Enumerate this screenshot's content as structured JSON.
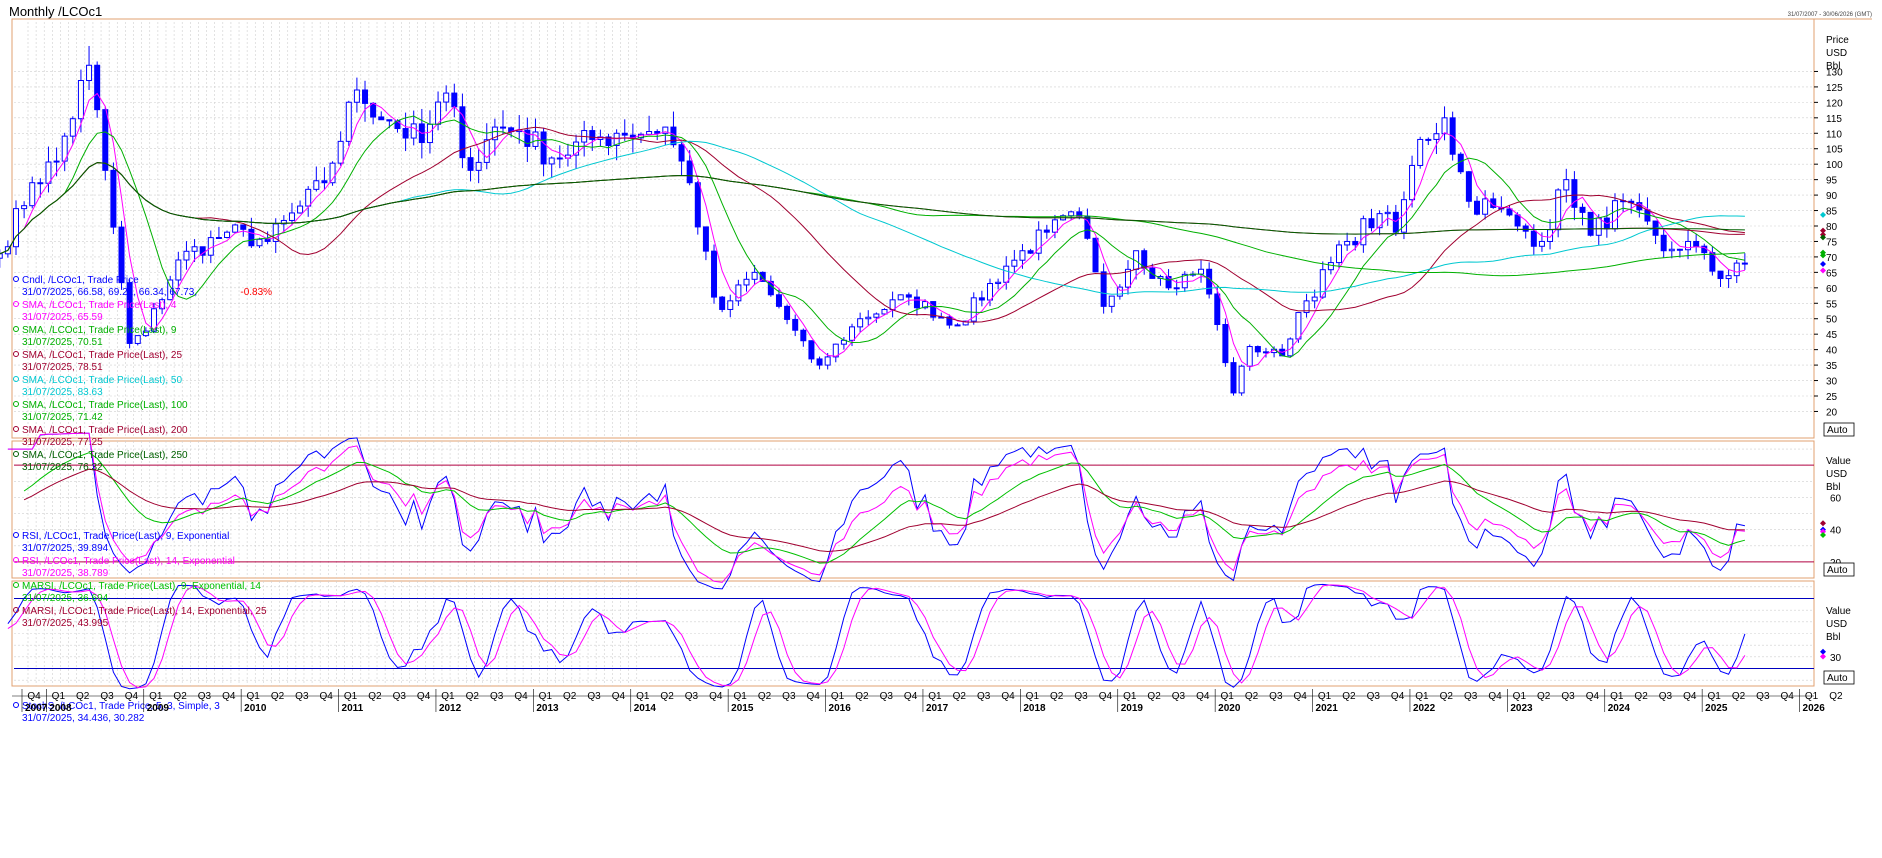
{
  "title": "Monthly /LCOc1",
  "date_range": "31/07/2007 - 30/06/2026 (GMT)",
  "colors": {
    "candle": "#0000ff",
    "sma4": "#ff00ff",
    "sma9": "#00b000",
    "sma25": "#a00030",
    "sma50": "#00c8d0",
    "sma100": "#00b000",
    "sma200": "#a00030",
    "sma250": "#006000",
    "rsi9": "#0000ff",
    "rsi14": "#ff00ff",
    "marsi9": "#00c000",
    "marsi14": "#a00030",
    "stochK": "#0000ff",
    "stochD": "#ff00ff",
    "level": "#b00040",
    "stochLevel": "#0000c0"
  },
  "price_panel": {
    "legend": [
      {
        "label": "Cndl, /LCOc1, Trade Price",
        "color": "#0000ff",
        "value_text": "31/07/2025, 66.58, 69.21, 66.34, 67.73,",
        "change_text": "-0.83%"
      },
      {
        "label": "SMA, /LCOc1, Trade Price(Last), 4",
        "color": "#ff00ff",
        "value_text": "31/07/2025, 65.59"
      },
      {
        "label": "SMA, /LCOc1, Trade Price(Last), 9",
        "color": "#00b000",
        "value_text": "31/07/2025, 70.51"
      },
      {
        "label": "SMA, /LCOc1, Trade Price(Last), 25",
        "color": "#a00030",
        "value_text": "31/07/2025, 78.51"
      },
      {
        "label": "SMA, /LCOc1, Trade Price(Last), 50",
        "color": "#00c8d0",
        "value_text": "31/07/2025, 83.63"
      },
      {
        "label": "SMA, /LCOc1, Trade Price(Last), 100",
        "color": "#00b000",
        "value_text": "31/07/2025, 71.42"
      },
      {
        "label": "SMA, /LCOc1, Trade Price(Last), 200",
        "color": "#a00030",
        "value_text": "31/07/2025, 77.25"
      },
      {
        "label": "SMA, /LCOc1, Trade Price(Last), 250",
        "color": "#006000",
        "value_text": "31/07/2025, 76.32"
      }
    ],
    "axis_header": [
      "Price",
      "USD",
      "Bbl"
    ],
    "ticks": [
      20,
      25,
      30,
      35,
      40,
      45,
      50,
      55,
      60,
      65,
      70,
      75,
      80,
      85,
      90,
      95,
      100,
      105,
      110,
      115,
      120,
      125,
      130
    ],
    "ylim": [
      14,
      146
    ],
    "auto_label": "Auto"
  },
  "rsi_panel": {
    "legend": [
      {
        "label": "RSI, /LCOc1, Trade Price(Last), 9, Exponential",
        "color": "#0000ff",
        "value_text": "31/07/2025, 39.894"
      },
      {
        "label": "RSI, /LCOc1, Trade Price(Last), 14, Exponential",
        "color": "#ff00ff",
        "value_text": "31/07/2025, 38.789"
      },
      {
        "label": "MARSI, /LCOc1, Trade Price(Last), 9, Exponential, 14",
        "color": "#00c000",
        "value_text": "31/07/2025, 36.694"
      },
      {
        "label": "MARSI, /LCOc1, Trade Price(Last), 14, Exponential, 25",
        "color": "#a00030",
        "value_text": "31/07/2025, 43.995"
      }
    ],
    "axis_header": [
      "Value",
      "USD",
      "Bbl"
    ],
    "ticks": [
      20,
      40,
      60
    ],
    "levels": [
      20,
      80
    ],
    "ylim": [
      10,
      95
    ],
    "auto_label": "Auto"
  },
  "stoch_panel": {
    "legend": [
      {
        "label": "StochS, /LCOc1, Trade Price, 5, 3, Simple, 3",
        "color": "#0000ff",
        "value_text": "31/07/2025, 34.436, 30.282"
      }
    ],
    "axis_header": [
      "Value",
      "USD",
      "Bbl"
    ],
    "ticks": [
      30
    ],
    "levels": [
      20,
      80
    ],
    "ylim": [
      5,
      95
    ],
    "auto_label": "Auto"
  },
  "x_axis": {
    "quarter_labels": [
      "Q1",
      "Q2",
      "Q3",
      "Q4"
    ],
    "years": [
      "2007",
      "2008",
      "2009",
      "2010",
      "2011",
      "2012",
      "2013",
      "2014",
      "2015",
      "2016",
      "2017",
      "2018",
      "2019",
      "2020",
      "2021",
      "2022",
      "2023",
      "2024",
      "2025",
      "2026"
    ],
    "first": "2007-Q4",
    "last": "2026-Q2"
  },
  "chart_data": {
    "type": "candlestick",
    "instrument": "/LCOc1",
    "interval": "Monthly",
    "close_keypoints": [
      [
        "2007-08",
        71
      ],
      [
        "2007-12",
        94
      ],
      [
        "2008-03",
        101
      ],
      [
        "2008-07",
        132
      ],
      [
        "2008-09",
        98
      ],
      [
        "2008-12",
        42
      ],
      [
        "2009-02",
        46
      ],
      [
        "2009-06",
        69
      ],
      [
        "2009-12",
        78
      ],
      [
        "2010-05",
        75
      ],
      [
        "2010-12",
        94
      ],
      [
        "2011-04",
        124
      ],
      [
        "2011-08",
        114
      ],
      [
        "2011-12",
        107
      ],
      [
        "2012-03",
        123
      ],
      [
        "2012-06",
        98
      ],
      [
        "2012-09",
        112
      ],
      [
        "2012-12",
        111
      ],
      [
        "2013-04",
        102
      ],
      [
        "2013-09",
        108
      ],
      [
        "2013-12",
        110
      ],
      [
        "2014-06",
        112
      ],
      [
        "2014-09",
        94
      ],
      [
        "2014-12",
        57
      ],
      [
        "2015-01",
        53
      ],
      [
        "2015-05",
        65
      ],
      [
        "2015-08",
        54
      ],
      [
        "2015-12",
        37
      ],
      [
        "2016-01",
        35
      ],
      [
        "2016-06",
        50
      ],
      [
        "2016-12",
        57
      ],
      [
        "2017-06",
        48
      ],
      [
        "2017-12",
        67
      ],
      [
        "2018-05",
        78
      ],
      [
        "2018-09",
        83
      ],
      [
        "2018-12",
        54
      ],
      [
        "2019-04",
        72
      ],
      [
        "2019-08",
        60
      ],
      [
        "2019-12",
        66
      ],
      [
        "2020-01",
        58
      ],
      [
        "2020-04",
        26
      ],
      [
        "2020-06",
        41
      ],
      [
        "2020-10",
        38
      ],
      [
        "2020-12",
        52
      ],
      [
        "2021-06",
        75
      ],
      [
        "2021-10",
        84
      ],
      [
        "2021-12",
        78
      ],
      [
        "2022-03",
        108
      ],
      [
        "2022-06",
        115
      ],
      [
        "2022-09",
        88
      ],
      [
        "2022-12",
        86
      ],
      [
        "2023-03",
        80
      ],
      [
        "2023-06",
        75
      ],
      [
        "2023-09",
        95
      ],
      [
        "2023-12",
        77
      ],
      [
        "2024-04",
        88
      ],
      [
        "2024-09",
        72
      ],
      [
        "2024-12",
        75
      ],
      [
        "2025-04",
        63
      ],
      [
        "2025-06",
        68
      ],
      [
        "2025-07",
        67.73
      ]
    ],
    "last_candle": {
      "date": "31/07/2025",
      "open": 66.58,
      "high": 69.21,
      "low": 66.34,
      "close": 67.73,
      "change_pct": -0.83
    }
  }
}
